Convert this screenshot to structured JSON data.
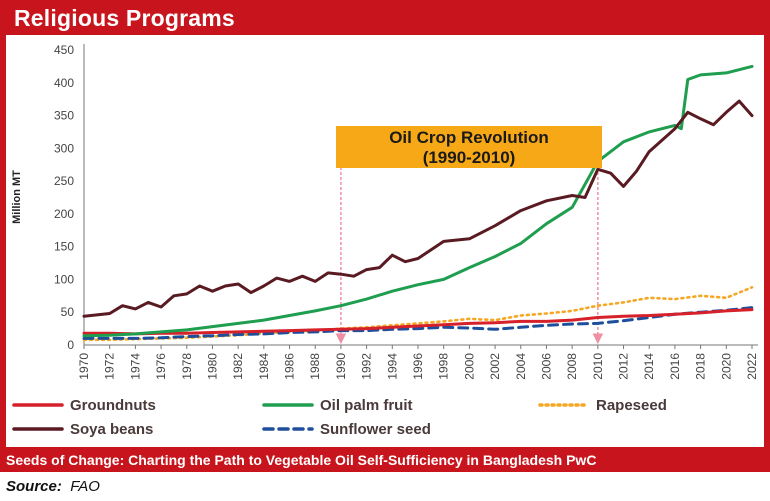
{
  "header": {
    "title": "Religious Programs"
  },
  "footer": {
    "caption": "Seeds of Change: Charting the Path to Vegetable Oil Self-Sufficiency in Bangladesh PwC",
    "source_label": "Source:",
    "source_value": "FAO"
  },
  "colors": {
    "frame": "#c8151d",
    "groundnuts": "#d6202a",
    "oil_palm_fruit": "#1e9e4e",
    "rapeseed": "#f5a623",
    "soya_beans": "#5a1a22",
    "sunflower_seed": "#1d4f9c",
    "annotation_box": "#f7a817",
    "marker_line": "#ef8fa4"
  },
  "chart_data": {
    "type": "line",
    "ylabel": "Million MT",
    "xlabel": "",
    "ylim": [
      0,
      450
    ],
    "yticks": [
      0,
      50,
      100,
      150,
      200,
      250,
      300,
      350,
      400,
      450
    ],
    "xlim": [
      1970,
      2022
    ],
    "xticks": [
      1970,
      1972,
      1974,
      1976,
      1978,
      1980,
      1982,
      1984,
      1986,
      1988,
      1990,
      1992,
      1994,
      1996,
      1998,
      2000,
      2002,
      2004,
      2006,
      2008,
      2010,
      2012,
      2014,
      2016,
      2018,
      2020,
      2022
    ],
    "grid": false,
    "legend_position": "bottom",
    "annotation": {
      "line1": "Oil Crop Revolution",
      "line2": "(1990-2010)",
      "x_start": 1990,
      "x_end": 2010
    },
    "series": [
      {
        "name": "Groundnuts",
        "key": "groundnuts",
        "style": "solid",
        "x": [
          1970,
          1972,
          1974,
          1976,
          1978,
          1980,
          1982,
          1984,
          1986,
          1988,
          1990,
          1992,
          1994,
          1996,
          1998,
          2000,
          2002,
          2004,
          2006,
          2008,
          2010,
          2012,
          2014,
          2016,
          2018,
          2020,
          2022
        ],
        "values": [
          18,
          18,
          17,
          18,
          18,
          19,
          20,
          21,
          22,
          23,
          24,
          25,
          27,
          29,
          31,
          33,
          34,
          36,
          36,
          38,
          42,
          44,
          45,
          47,
          49,
          52,
          54
        ]
      },
      {
        "name": "Oil palm fruit",
        "key": "oil_palm_fruit",
        "style": "solid",
        "x": [
          1970,
          1972,
          1974,
          1976,
          1978,
          1980,
          1982,
          1984,
          1986,
          1988,
          1990,
          1992,
          1994,
          1996,
          1998,
          2000,
          2002,
          2004,
          2006,
          2008,
          2010,
          2012,
          2014,
          2016,
          2016.5,
          2017,
          2018,
          2020,
          2022
        ],
        "values": [
          14,
          15,
          17,
          20,
          23,
          28,
          33,
          38,
          45,
          52,
          60,
          70,
          82,
          92,
          100,
          118,
          135,
          155,
          185,
          210,
          280,
          310,
          325,
          335,
          330,
          405,
          412,
          415,
          425
        ]
      },
      {
        "name": "Rapeseed",
        "key": "rapeseed",
        "style": "dotted",
        "x": [
          1970,
          1972,
          1974,
          1976,
          1978,
          1980,
          1982,
          1984,
          1986,
          1988,
          1990,
          1992,
          1994,
          1996,
          1998,
          2000,
          2002,
          2004,
          2006,
          2008,
          2010,
          2012,
          2014,
          2016,
          2018,
          2020,
          2022
        ],
        "values": [
          8,
          8,
          9,
          10,
          11,
          13,
          15,
          18,
          20,
          22,
          25,
          27,
          30,
          33,
          36,
          40,
          38,
          45,
          48,
          52,
          60,
          65,
          72,
          70,
          75,
          72,
          88
        ]
      },
      {
        "name": "Soya beans",
        "key": "soya_beans",
        "style": "solid",
        "x": [
          1970,
          1972,
          1973,
          1974,
          1975,
          1976,
          1977,
          1978,
          1979,
          1980,
          1981,
          1982,
          1983,
          1984,
          1985,
          1986,
          1987,
          1988,
          1989,
          1990,
          1991,
          1992,
          1993,
          1994,
          1995,
          1996,
          1998,
          2000,
          2002,
          2004,
          2006,
          2008,
          2009,
          2010,
          2011,
          2012,
          2013,
          2014,
          2016,
          2017,
          2018,
          2019,
          2020,
          2021,
          2022
        ],
        "values": [
          44,
          48,
          60,
          55,
          65,
          58,
          75,
          78,
          90,
          82,
          90,
          93,
          80,
          90,
          102,
          97,
          105,
          97,
          110,
          108,
          105,
          115,
          118,
          137,
          127,
          132,
          158,
          162,
          182,
          205,
          220,
          228,
          225,
          268,
          262,
          242,
          265,
          295,
          330,
          355,
          345,
          336,
          355,
          372,
          350
        ]
      },
      {
        "name": "Sunflower seed",
        "key": "sunflower_seed",
        "style": "dashed",
        "x": [
          1970,
          1972,
          1974,
          1976,
          1978,
          1980,
          1982,
          1984,
          1986,
          1988,
          1990,
          1992,
          1994,
          1996,
          1998,
          2000,
          2002,
          2004,
          2006,
          2008,
          2010,
          2012,
          2014,
          2016,
          2018,
          2020,
          2022
        ],
        "values": [
          10,
          10,
          10,
          11,
          13,
          14,
          16,
          17,
          19,
          20,
          22,
          22,
          24,
          25,
          27,
          26,
          24,
          27,
          30,
          32,
          33,
          37,
          42,
          47,
          50,
          53,
          57
        ]
      }
    ]
  }
}
